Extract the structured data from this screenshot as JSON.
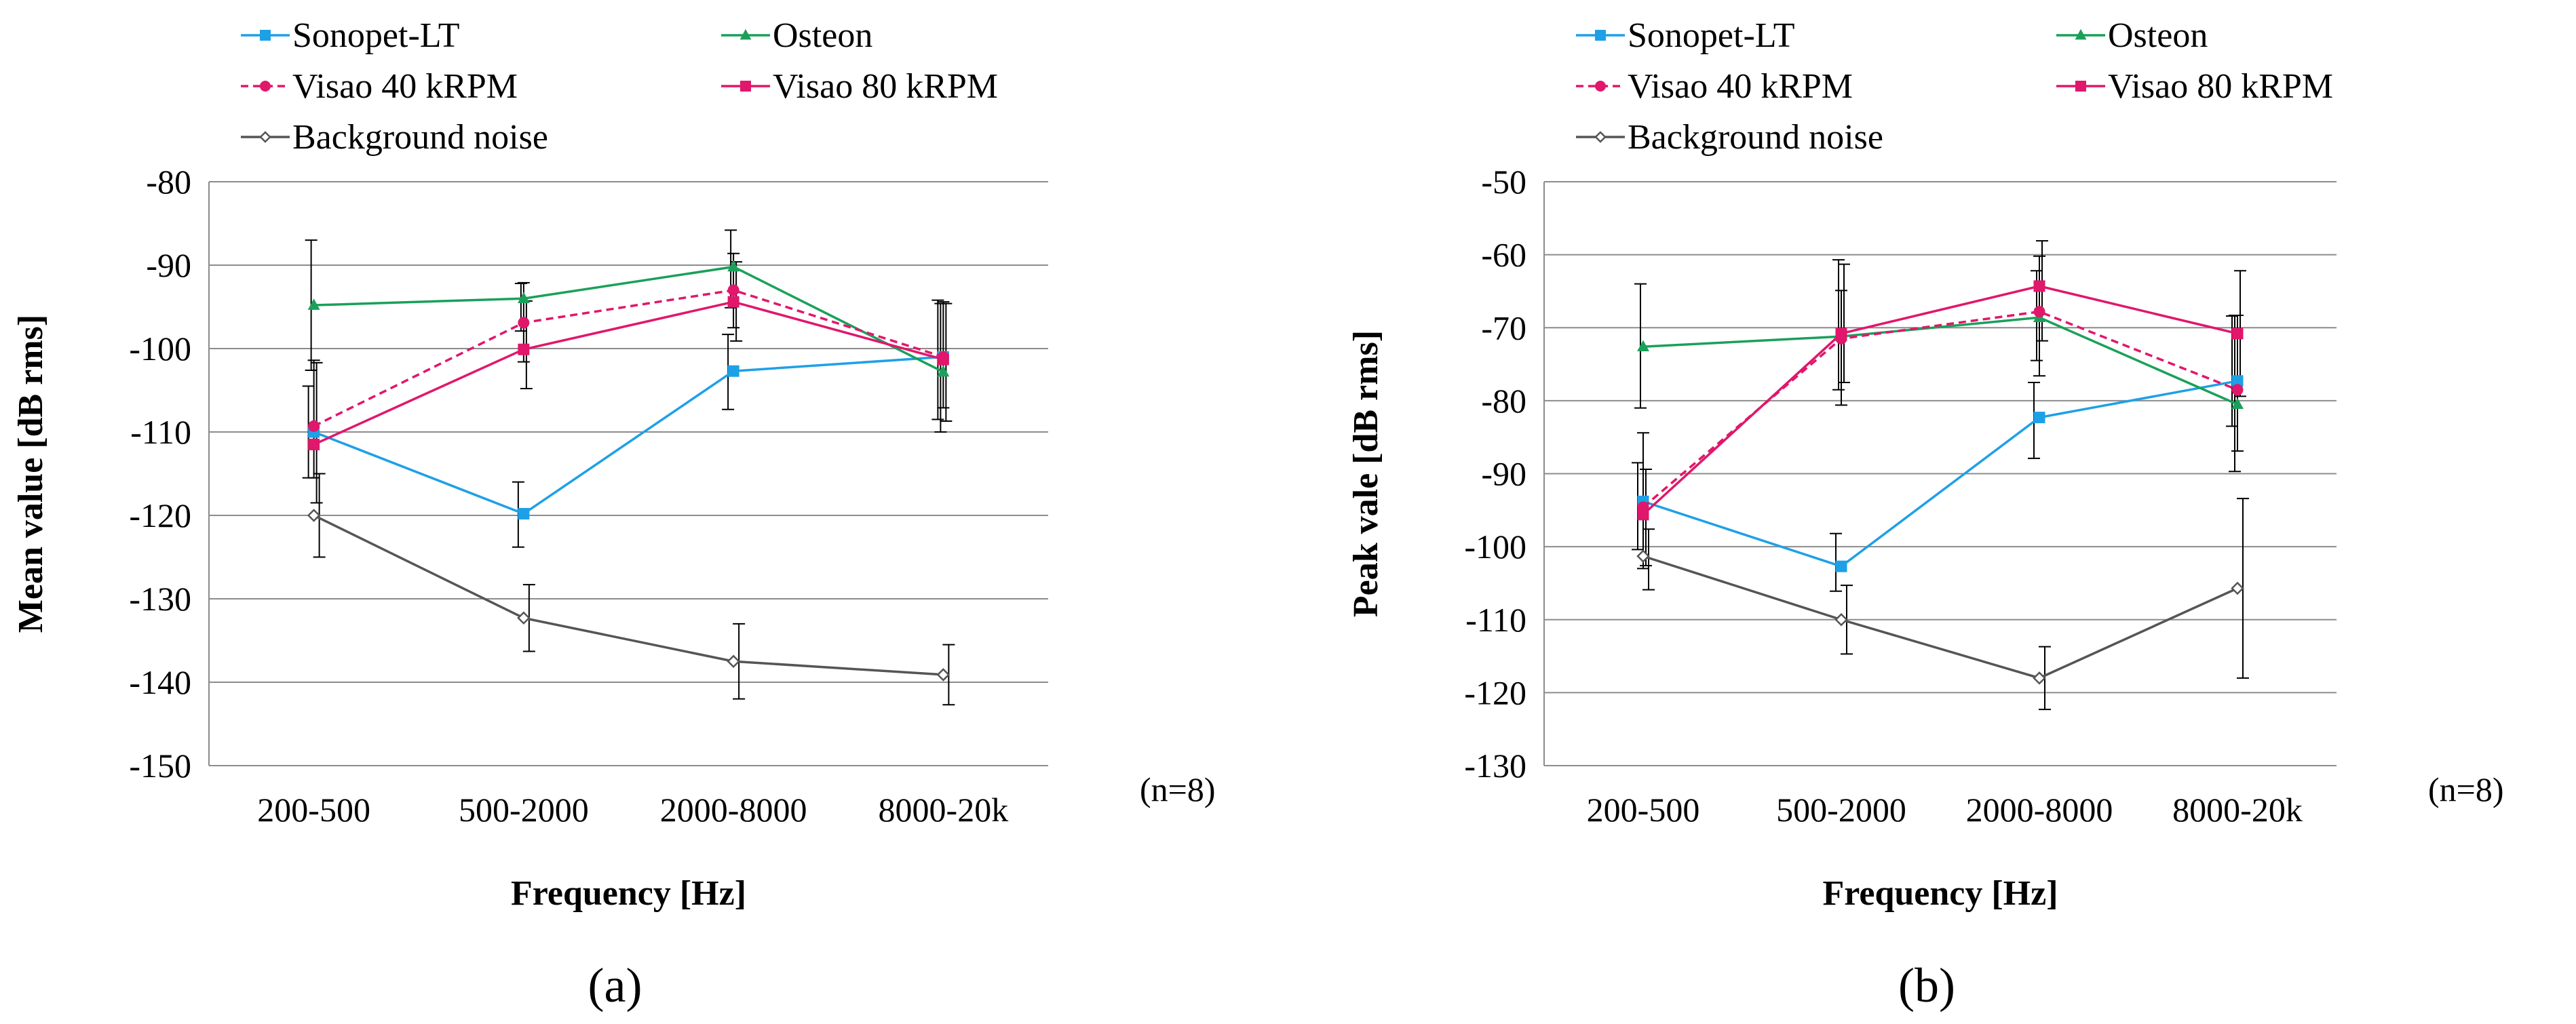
{
  "chart_data": [
    {
      "type": "line",
      "panel_label": "(a)",
      "title": "",
      "xlabel": "Frequency [Hz]",
      "ylabel": "Mean value [dB rms]",
      "categories": [
        "200-500",
        "500-2000",
        "2000-8000",
        "8000-20k"
      ],
      "ylim": [
        -150,
        -80
      ],
      "yticks": [
        -80,
        -90,
        -100,
        -110,
        -120,
        -130,
        -140,
        -150
      ],
      "grid": true,
      "legend_position": "top",
      "annotation": "(n=8)",
      "series": [
        {
          "name": "Sonopet-LT",
          "color": "#1ea0e6",
          "marker": "square",
          "dashed": false,
          "values": [
            -110,
            -119.8,
            -102.7,
            -101
          ],
          "error_low": [
            -115.5,
            -123.8,
            -107.3,
            -108.5
          ],
          "error_high": [
            -104.5,
            -116,
            -98.3,
            -94.2
          ]
        },
        {
          "name": "Osteon",
          "color": "#1aa05a",
          "marker": "triangle",
          "dashed": false,
          "values": [
            -94.8,
            -94,
            -90.2,
            -102.8
          ],
          "error_low": [
            -102.6,
            -97.9,
            -95.1,
            -110
          ],
          "error_high": [
            -87,
            -92.2,
            -85.8,
            -94.6
          ]
        },
        {
          "name": "Visao 40 kRPM",
          "color": "#e0176b",
          "marker": "circle",
          "dashed": true,
          "values": [
            -109.3,
            -96.9,
            -93,
            -101
          ],
          "error_low": [
            -115.5,
            -101.6,
            -97.5,
            -107.1
          ],
          "error_high": [
            -101.4,
            -92.1,
            -88.6,
            -94.4
          ]
        },
        {
          "name": "Visao 80 kRPM",
          "color": "#e0176b",
          "marker": "square",
          "dashed": false,
          "values": [
            -111.5,
            -100.1,
            -94.4,
            -101.3
          ],
          "error_low": [
            -118.5,
            -104.8,
            -99.1,
            -108.7
          ],
          "error_high": [
            -101.7,
            -94.3,
            -89.6,
            -94.6
          ]
        },
        {
          "name": "Background noise",
          "color": "#555555",
          "marker": "open-diamond",
          "dashed": false,
          "values": [
            -120,
            -132.3,
            -137.5,
            -139.1
          ],
          "error_low": [
            -125,
            -136.3,
            -142,
            -142.7
          ],
          "error_high": [
            -115,
            -128.3,
            -133,
            -135.5
          ]
        }
      ]
    },
    {
      "type": "line",
      "panel_label": "(b)",
      "title": "",
      "xlabel": "Frequency [Hz]",
      "ylabel": "Peak vale [dB rms]",
      "categories": [
        "200-500",
        "500-2000",
        "2000-8000",
        "8000-20k"
      ],
      "ylim": [
        -130,
        -50
      ],
      "yticks": [
        -50,
        -60,
        -70,
        -80,
        -90,
        -100,
        -110,
        -120,
        -130
      ],
      "grid": true,
      "legend_position": "top",
      "annotation": "(n=8)",
      "series": [
        {
          "name": "Sonopet-LT",
          "color": "#1ea0e6",
          "marker": "square",
          "dashed": false,
          "values": [
            -93.8,
            -102.7,
            -82.3,
            -77.3
          ],
          "error_low": [
            -100.4,
            -106.1,
            -87.9,
            -83.5
          ],
          "error_high": [
            -88.5,
            -98.2,
            -77.5,
            -68.4
          ]
        },
        {
          "name": "Osteon",
          "color": "#1aa05a",
          "marker": "triangle",
          "dashed": false,
          "values": [
            -72.6,
            -71.2,
            -68.6,
            -80.5
          ],
          "error_low": [
            -81,
            -78.5,
            -74.5,
            -89.7
          ],
          "error_high": [
            -64,
            -60.7,
            -62.2,
            -68.3
          ]
        },
        {
          "name": "Visao 40 kRPM",
          "color": "#e0176b",
          "marker": "circle",
          "dashed": true,
          "values": [
            -94.6,
            -71.5,
            -67.8,
            -78.5
          ],
          "error_low": [
            -103,
            -80.6,
            -76.6,
            -86.9
          ],
          "error_high": [
            -84.4,
            -64.9,
            -60.2,
            -68.3
          ]
        },
        {
          "name": "Visao 80 kRPM",
          "color": "#e0176b",
          "marker": "square",
          "dashed": false,
          "values": [
            -95.6,
            -70.8,
            -64.3,
            -70.8
          ],
          "error_low": [
            -102.6,
            -77.5,
            -71.8,
            -79.4
          ],
          "error_high": [
            -89.4,
            -61.3,
            -58.1,
            -62.2
          ]
        },
        {
          "name": "Background noise",
          "color": "#555555",
          "marker": "open-diamond",
          "dashed": false,
          "values": [
            -101.3,
            -110,
            -118,
            -105.7
          ],
          "error_low": [
            -105.9,
            -114.7,
            -122.3,
            -118
          ],
          "error_high": [
            -97.6,
            -105.3,
            -113.7,
            -93.4
          ]
        }
      ]
    }
  ]
}
